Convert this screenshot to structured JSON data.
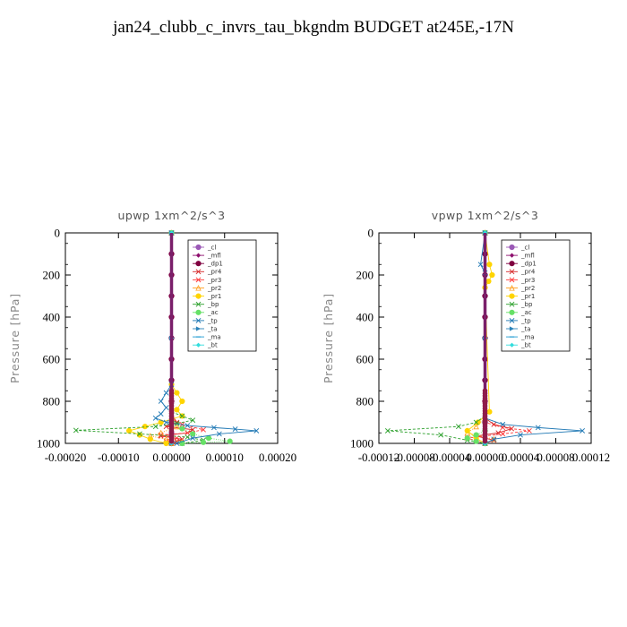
{
  "title": "jan24_clubb_c_invrs_tau_bkgndm  BUDGET at245E,-17N",
  "colors": {
    "_cl": "#9b59b6",
    "_mfl": "#8e0f6e",
    "_dp1": "#800040",
    "_pr4": "#d62728",
    "_pr3": "#ff3b3b",
    "_pr2": "#ff9f1c",
    "_pr1": "#ffd400",
    "_bp": "#2ca02c",
    "_ac": "#66e066",
    "_tp": "#1f78b4",
    "_ta": "#2b83ba",
    "_ma": "#1f9bd1",
    "_bt": "#33dddd"
  },
  "chart_data": [
    {
      "type": "line",
      "title": "upwp   1xm^2/s^3",
      "ylabel": "Pressure [hPa]",
      "xlim": [
        -0.0002,
        0.0002
      ],
      "ylim": [
        1000,
        0
      ],
      "xticks": [
        -0.0002,
        -0.0001,
        0,
        0.0001,
        0.0002
      ],
      "xtick_labels": [
        "-0.00020",
        "-0.00010",
        "0.00000",
        "0.00010",
        "0.00020"
      ],
      "yticks": [
        0,
        200,
        400,
        600,
        800,
        1000
      ],
      "ytick_labels": [
        "0",
        "200",
        "400",
        "600",
        "800",
        "1000"
      ],
      "legend": [
        "_cl",
        "_mfl",
        "_dp1",
        "_pr4",
        "_pr3",
        "_pr2",
        "_pr1",
        "_bp",
        "_ac",
        "_tp",
        "_ta",
        "_ma",
        "_bt"
      ],
      "series": [
        {
          "name": "_cl",
          "x": [
            0,
            0,
            0,
            0,
            0,
            0,
            0,
            0,
            0,
            0,
            0,
            0
          ],
          "y": [
            0,
            100,
            200,
            300,
            400,
            500,
            600,
            700,
            800,
            900,
            950,
            1000
          ]
        },
        {
          "name": "_mfl",
          "x": [
            0,
            0,
            0,
            0,
            0,
            0,
            0,
            0,
            0,
            0,
            0
          ],
          "y": [
            0,
            100,
            200,
            300,
            400,
            500,
            600,
            700,
            800,
            900,
            1000
          ]
        },
        {
          "name": "_dp1",
          "x": [
            0,
            0,
            0,
            0,
            0,
            0,
            0,
            0,
            0,
            0,
            0
          ],
          "y": [
            0,
            100,
            200,
            300,
            400,
            500,
            600,
            700,
            800,
            900,
            1000
          ]
        },
        {
          "name": "_pr4",
          "x": [
            0,
            0,
            1e-05,
            -1e-05,
            4e-05,
            3e-05,
            -2e-05,
            2e-05,
            1e-05,
            0
          ],
          "y": [
            0,
            860,
            900,
            920,
            935,
            950,
            965,
            980,
            990,
            1000
          ]
        },
        {
          "name": "_pr3",
          "x": [
            0,
            0,
            2e-05,
            6e-05,
            3e-05,
            -2e-05,
            1e-05,
            -1e-05,
            0
          ],
          "y": [
            0,
            880,
            910,
            935,
            950,
            960,
            975,
            990,
            1000
          ]
        },
        {
          "name": "_pr2",
          "x": [
            0,
            0,
            1e-05,
            -2e-05,
            -4e-05,
            -1e-05,
            2e-05,
            0
          ],
          "y": [
            0,
            880,
            920,
            950,
            965,
            980,
            992,
            1000
          ]
        },
        {
          "name": "_pr1",
          "x": [
            0,
            0,
            1e-05,
            2e-05,
            1e-05,
            2e-05,
            -2e-05,
            -5e-05,
            -8e-05,
            -6e-05,
            -4e-05,
            -1e-05
          ],
          "y": [
            0,
            720,
            760,
            800,
            840,
            870,
            900,
            920,
            940,
            960,
            980,
            1000
          ]
        },
        {
          "name": "_bp",
          "x": [
            0,
            0,
            2e-05,
            4e-05,
            1e-05,
            -3e-05,
            -0.00018,
            -6e-05,
            3e-05,
            6e-05,
            2e-05
          ],
          "y": [
            0,
            850,
            870,
            890,
            905,
            920,
            938,
            955,
            970,
            985,
            1000
          ]
        },
        {
          "name": "_ac",
          "x": [
            0,
            0,
            2e-05,
            4e-05,
            7e-05,
            0.00011,
            6e-05,
            2e-05
          ],
          "y": [
            0,
            900,
            930,
            955,
            975,
            990,
            995,
            1000
          ]
        },
        {
          "name": "_tp",
          "x": [
            0,
            0,
            -1e-05,
            -2e-05,
            -1e-05,
            -2e-05,
            -3e-05,
            -1e-05,
            3e-05,
            8e-05,
            0.00012,
            0.00016,
            9e-05,
            4e-05,
            1e-05
          ],
          "y": [
            0,
            720,
            760,
            800,
            830,
            860,
            880,
            900,
            915,
            925,
            932,
            940,
            955,
            975,
            1000
          ]
        },
        {
          "name": "_ta",
          "x": [
            0,
            0,
            0,
            0
          ],
          "y": [
            0,
            500,
            900,
            1000
          ]
        },
        {
          "name": "_ma",
          "x": [
            0,
            0,
            0,
            0
          ],
          "y": [
            0,
            500,
            900,
            1000
          ]
        },
        {
          "name": "_bt",
          "x": [
            0,
            0,
            0,
            0
          ],
          "y": [
            0,
            500,
            900,
            1000
          ]
        }
      ]
    },
    {
      "type": "line",
      "title": "vpwp   1xm^2/s^3",
      "ylabel": "Pressure [hPa]",
      "xlim": [
        -0.00012,
        0.00012
      ],
      "ylim": [
        1000,
        0
      ],
      "xticks": [
        -0.00012,
        -8e-05,
        -4e-05,
        0,
        4e-05,
        8e-05,
        0.00012
      ],
      "xtick_labels": [
        "-0.00012",
        "-0.00008",
        "-0.00004",
        "0.00000",
        "0.00004",
        "0.00008",
        "0.00012"
      ],
      "yticks": [
        0,
        200,
        400,
        600,
        800,
        1000
      ],
      "ytick_labels": [
        "0",
        "200",
        "400",
        "600",
        "800",
        "1000"
      ],
      "legend": [
        "_cl",
        "_mfl",
        "_dp1",
        "_pr4",
        "_pr3",
        "_pr2",
        "_pr1",
        "_bp",
        "_ac",
        "_tp",
        "_ta",
        "_ma",
        "_bt"
      ],
      "series": [
        {
          "name": "_cl",
          "x": [
            0,
            0,
            0,
            0,
            0,
            0,
            0,
            0,
            0,
            0,
            0
          ],
          "y": [
            0,
            100,
            200,
            300,
            400,
            500,
            600,
            700,
            800,
            900,
            1000
          ]
        },
        {
          "name": "_mfl",
          "x": [
            0,
            0,
            0,
            0,
            0,
            0,
            0,
            0,
            0,
            0,
            0
          ],
          "y": [
            0,
            100,
            200,
            300,
            400,
            500,
            600,
            700,
            800,
            900,
            1000
          ]
        },
        {
          "name": "_dp1",
          "x": [
            0,
            0,
            0,
            0,
            0,
            0,
            0,
            0,
            0,
            0,
            0
          ],
          "y": [
            0,
            100,
            200,
            300,
            400,
            500,
            600,
            700,
            800,
            900,
            1000
          ]
        },
        {
          "name": "_pr4",
          "x": [
            0,
            0,
            1e-05,
            3e-05,
            1.5e-05,
            -1e-05,
            1e-05,
            0
          ],
          "y": [
            0,
            880,
            910,
            930,
            950,
            965,
            985,
            1000
          ]
        },
        {
          "name": "_pr3",
          "x": [
            0,
            0,
            2e-05,
            5e-05,
            2e-05,
            -2e-05,
            0
          ],
          "y": [
            0,
            900,
            925,
            940,
            955,
            975,
            1000
          ]
        },
        {
          "name": "_pr2",
          "x": [
            0,
            0,
            -1e-05,
            -2e-05,
            1e-05,
            0
          ],
          "y": [
            0,
            880,
            920,
            950,
            980,
            1000
          ]
        },
        {
          "name": "_pr1",
          "x": [
            0,
            5e-06,
            8e-06,
            4e-06,
            0,
            5e-06,
            -8e-06,
            -2e-05,
            -1e-05,
            0
          ],
          "y": [
            0,
            150,
            200,
            230,
            260,
            850,
            900,
            940,
            975,
            1000
          ]
        },
        {
          "name": "_bp",
          "x": [
            0,
            0,
            -1e-05,
            -3e-05,
            -0.00011,
            -5e-05,
            -2e-05,
            0
          ],
          "y": [
            0,
            870,
            900,
            920,
            940,
            960,
            985,
            1000
          ]
        },
        {
          "name": "_ac",
          "x": [
            0,
            0,
            -1e-05,
            -2e-05,
            -1e-05,
            0
          ],
          "y": [
            0,
            940,
            960,
            975,
            990,
            1000
          ]
        },
        {
          "name": "_tp",
          "x": [
            0,
            -5e-06,
            0,
            0,
            2e-05,
            6e-05,
            0.00011,
            4e-05,
            1e-05,
            0
          ],
          "y": [
            0,
            150,
            190,
            880,
            910,
            925,
            940,
            960,
            980,
            1000
          ]
        },
        {
          "name": "_ta",
          "x": [
            0,
            0,
            0,
            0
          ],
          "y": [
            0,
            500,
            900,
            1000
          ]
        },
        {
          "name": "_ma",
          "x": [
            0,
            0,
            0,
            0
          ],
          "y": [
            0,
            500,
            900,
            1000
          ]
        },
        {
          "name": "_bt",
          "x": [
            0,
            0,
            0,
            0
          ],
          "y": [
            0,
            500,
            900,
            1000
          ]
        }
      ]
    }
  ]
}
